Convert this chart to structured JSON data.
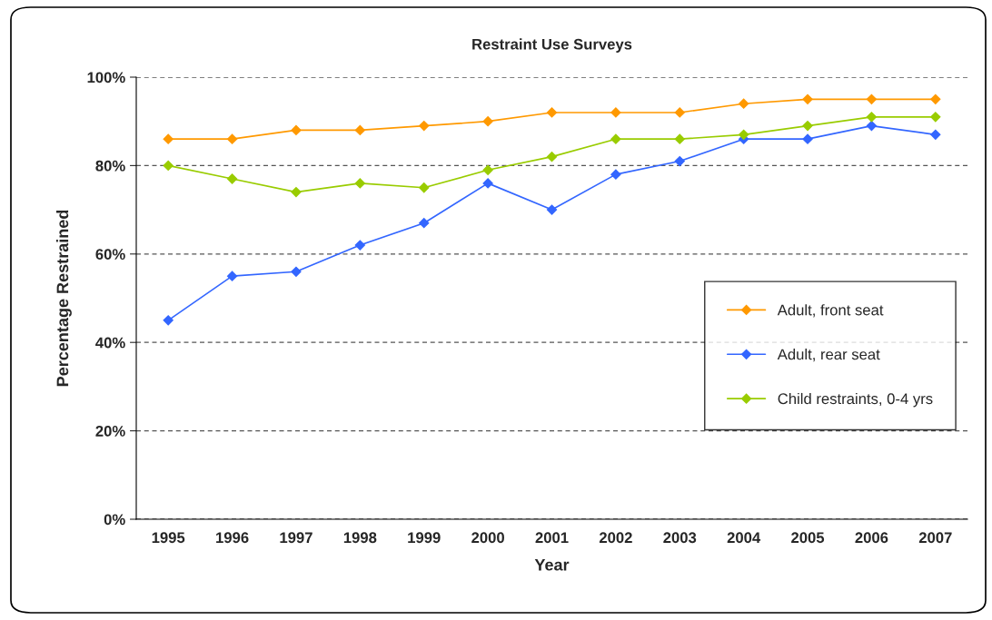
{
  "chart_data": {
    "type": "line",
    "title": "Restraint Use Surveys",
    "xlabel": "Year",
    "ylabel": "Percentage Restrained",
    "categories": [
      "1995",
      "1996",
      "1997",
      "1998",
      "1999",
      "2000",
      "2001",
      "2002",
      "2003",
      "2004",
      "2005",
      "2006",
      "2007"
    ],
    "series": [
      {
        "name": "Adult, front seat",
        "color": "#ff9900",
        "values": [
          86,
          86,
          88,
          88,
          89,
          90,
          92,
          92,
          92,
          94,
          95,
          95,
          95
        ]
      },
      {
        "name": "Adult, rear seat",
        "color": "#3366ff",
        "values": [
          45,
          55,
          56,
          62,
          67,
          76,
          70,
          78,
          81,
          86,
          86,
          89,
          87
        ]
      },
      {
        "name": "Child restraints, 0-4 yrs",
        "color": "#99cc00",
        "values": [
          80,
          77,
          74,
          76,
          75,
          79,
          82,
          86,
          86,
          87,
          89,
          91,
          91
        ]
      }
    ],
    "ylim": [
      0,
      100
    ],
    "yticks": [
      {
        "value": 0,
        "label": "0%"
      },
      {
        "value": 20,
        "label": "20%"
      },
      {
        "value": 40,
        "label": "40%"
      },
      {
        "value": 60,
        "label": "60%"
      },
      {
        "value": 80,
        "label": "80%"
      },
      {
        "value": 100,
        "label": "100%"
      }
    ],
    "grid": "y",
    "legend": "right",
    "marker": "diamond",
    "line_style": "solid"
  }
}
